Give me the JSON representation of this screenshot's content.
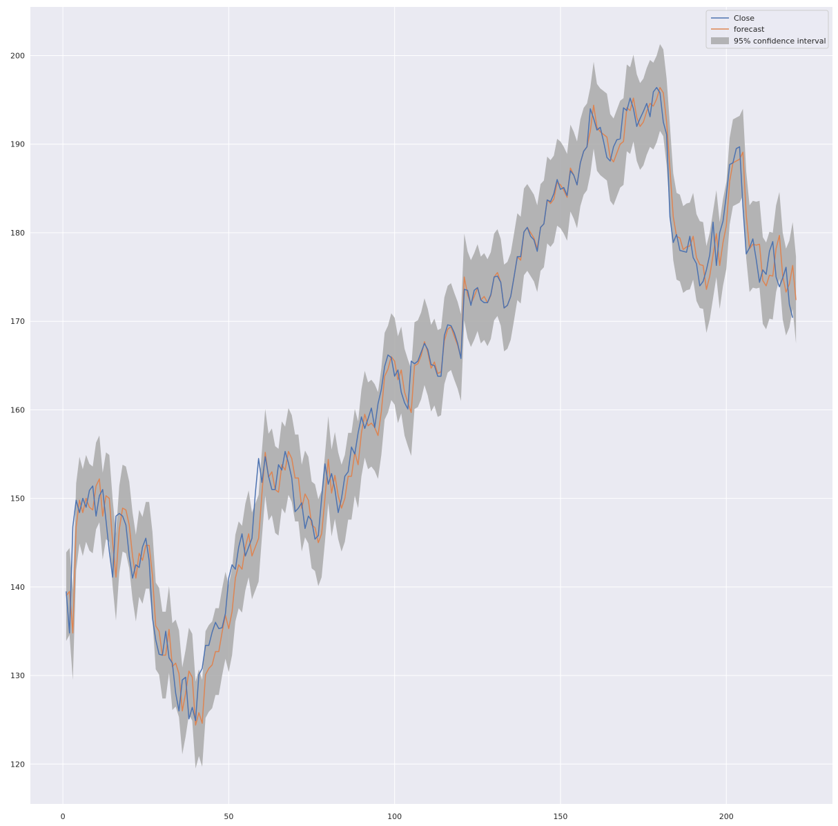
{
  "chart_data": {
    "type": "line",
    "title": "",
    "xlabel": "",
    "ylabel": "",
    "xlim": [
      -9.8,
      232
    ],
    "ylim": [
      115.5,
      205.5
    ],
    "x_ticks": [
      0,
      50,
      100,
      150,
      200
    ],
    "y_ticks": [
      120,
      130,
      140,
      150,
      160,
      170,
      180,
      190,
      200
    ],
    "grid": true,
    "legend_position": "top-right",
    "legend": {
      "close": "Close",
      "forecast": "forecast",
      "ci": "95% confidence interval"
    },
    "colors": {
      "close": "#4c72b0",
      "forecast": "#dd8452",
      "ci": "#a9a9a9",
      "background": "#eaeaf2",
      "grid": "#ffffff"
    },
    "x_start": 1,
    "series": [
      {
        "name": "Close",
        "values": [
          139.5,
          134.8,
          146.8,
          149.8,
          148.4,
          150.0,
          149.0,
          150.9,
          151.4,
          148.0,
          150.3,
          151.0,
          147.5,
          144.0,
          141.1,
          148.0,
          148.3,
          148.0,
          147.0,
          143.5,
          141.0,
          142.5,
          142.2,
          144.5,
          145.5,
          143.0,
          136.5,
          134.0,
          132.4,
          132.3,
          135.0,
          132.0,
          131.4,
          128.0,
          126.0,
          129.5,
          129.8,
          125.1,
          126.4,
          124.9,
          130.1,
          130.8,
          133.4,
          133.4,
          134.9,
          136.0,
          135.3,
          135.4,
          137.0,
          141.0,
          142.5,
          142.0,
          144.5,
          146.0,
          143.5,
          144.5,
          145.5,
          150.5,
          154.5,
          151.8,
          154.7,
          152.5,
          151.0,
          151.0,
          153.8,
          153.2,
          155.3,
          154.0,
          152.3,
          148.5,
          148.9,
          149.5,
          146.6,
          148.0,
          147.5,
          145.4,
          145.8,
          150.0,
          153.9,
          151.6,
          152.8,
          151.0,
          148.4,
          150.0,
          152.5,
          153.0,
          155.8,
          155.0,
          157.4,
          159.2,
          157.9,
          159.0,
          160.2,
          158.0,
          160.7,
          162.3,
          164.9,
          166.2,
          165.9,
          163.8,
          164.5,
          162.0,
          160.8,
          160.1,
          165.5,
          165.2,
          165.5,
          166.5,
          167.5,
          166.8,
          165.1,
          165.0,
          163.8,
          163.8,
          168.4,
          169.6,
          169.5,
          168.7,
          167.5,
          165.8,
          173.6,
          173.5,
          171.8,
          173.5,
          173.8,
          172.4,
          172.1,
          172.1,
          173.0,
          175.0,
          175.1,
          174.4,
          171.5,
          171.8,
          172.8,
          175.0,
          177.3,
          177.3,
          180.1,
          180.6,
          179.6,
          179.2,
          177.9,
          180.6,
          181.0,
          183.7,
          183.5,
          184.4,
          186.0,
          184.9,
          185.1,
          184.2,
          187.0,
          186.5,
          185.4,
          187.9,
          189.2,
          189.7,
          194.0,
          192.9,
          191.6,
          191.9,
          190.3,
          188.5,
          188.1,
          189.7,
          190.5,
          190.6,
          194.1,
          193.8,
          195.2,
          194.0,
          192.0,
          192.9,
          193.7,
          194.6,
          193.1,
          195.9,
          196.4,
          195.8,
          192.5,
          191.1,
          181.8,
          178.9,
          179.8,
          178.0,
          177.9,
          177.8,
          179.6,
          177.2,
          176.5,
          174.0,
          174.5,
          175.8,
          177.5,
          181.2,
          176.3,
          180.0,
          181.3,
          184.2,
          187.7,
          187.9,
          189.5,
          189.7,
          183.0,
          177.6,
          178.3,
          179.3,
          177.0,
          174.4,
          175.8,
          175.3,
          177.9,
          179.0,
          175.0,
          173.9,
          174.9,
          176.1,
          171.9,
          170.4
        ]
      },
      {
        "name": "forecast",
        "values": [
          139.0,
          139.5,
          134.8,
          146.8,
          149.8,
          148.4,
          150.0,
          149.0,
          148.7,
          151.4,
          152.2,
          148.0,
          150.3,
          150.0,
          145.0,
          141.1,
          146.5,
          148.9,
          148.7,
          147.0,
          143.5,
          141.0,
          143.8,
          143.0,
          144.7,
          144.7,
          141.3,
          135.6,
          135.0,
          132.3,
          132.3,
          135.2,
          131.0,
          131.4,
          130.2,
          126.0,
          128.0,
          130.5,
          129.8,
          124.4,
          125.8,
          124.6,
          130.1,
          130.8,
          131.2,
          132.7,
          132.7,
          134.9,
          136.8,
          135.3,
          137.2,
          141.0,
          142.5,
          142.0,
          144.5,
          146.0,
          143.5,
          144.5,
          145.5,
          150.5,
          155.2,
          152.4,
          153.0,
          151.0,
          150.7,
          153.8,
          153.2,
          155.3,
          154.5,
          152.3,
          152.3,
          148.9,
          150.5,
          149.8,
          147.0,
          146.7,
          145.0,
          146.0,
          150.0,
          154.4,
          150.6,
          152.6,
          150.3,
          148.9,
          150.0,
          152.5,
          152.5,
          155.2,
          153.8,
          157.4,
          159.5,
          158.2,
          158.5,
          158.0,
          157.1,
          159.8,
          163.8,
          164.6,
          166.0,
          165.5,
          163.4,
          164.5,
          162.0,
          160.8,
          159.7,
          165.0,
          165.2,
          166.1,
          167.7,
          166.5,
          164.7,
          165.4,
          164.1,
          164.3,
          167.8,
          169.1,
          169.4,
          168.3,
          167.3,
          165.9,
          175.0,
          173.0,
          172.0,
          172.8,
          173.8,
          172.4,
          172.8,
          172.1,
          172.9,
          175.0,
          175.5,
          174.4,
          171.5,
          171.8,
          172.8,
          175.0,
          177.3,
          176.9,
          180.1,
          180.6,
          180.0,
          179.4,
          178.2,
          180.6,
          181.0,
          183.7,
          183.3,
          183.8,
          185.7,
          185.4,
          184.8,
          184.0,
          187.3,
          186.5,
          185.4,
          187.9,
          189.2,
          189.7,
          191.5,
          194.4,
          191.9,
          191.4,
          191.1,
          190.8,
          188.5,
          188.0,
          189.0,
          190.0,
          190.3,
          194.1,
          193.8,
          195.2,
          193.0,
          192.0,
          192.5,
          193.7,
          194.6,
          194.3,
          195.1,
          196.4,
          195.8,
          192.5,
          187.2,
          181.8,
          179.6,
          179.4,
          178.1,
          178.4,
          178.5,
          179.6,
          177.2,
          176.4,
          176.3,
          173.6,
          175.1,
          177.5,
          179.9,
          176.3,
          178.9,
          180.8,
          185.8,
          187.9,
          188.1,
          188.3,
          189.1,
          182.0,
          178.2,
          178.7,
          178.6,
          178.7,
          174.6,
          174.0,
          175.2,
          175.1,
          178.2,
          179.7,
          175.1,
          173.3,
          174.2,
          176.3,
          172.4
        ]
      },
      {
        "name": "95% confidence interval",
        "lower": [
          133.9,
          134.6,
          129.5,
          141.9,
          144.9,
          143.5,
          145.1,
          144.1,
          143.8,
          146.5,
          147.3,
          143.1,
          145.4,
          145.1,
          140.1,
          136.2,
          141.6,
          144.0,
          143.8,
          142.1,
          138.6,
          136.1,
          138.9,
          138.1,
          139.8,
          139.8,
          136.4,
          130.7,
          130.1,
          127.4,
          127.4,
          130.3,
          126.1,
          126.5,
          125.3,
          121.1,
          123.1,
          125.6,
          124.9,
          119.5,
          120.9,
          119.7,
          125.2,
          125.9,
          126.3,
          127.8,
          127.8,
          130.0,
          131.9,
          130.4,
          132.3,
          136.1,
          137.6,
          137.1,
          139.6,
          141.1,
          138.6,
          139.6,
          140.6,
          145.6,
          150.3,
          147.5,
          148.1,
          146.1,
          145.8,
          148.9,
          148.3,
          150.4,
          149.6,
          147.4,
          147.4,
          144.0,
          145.6,
          144.9,
          142.1,
          141.8,
          140.1,
          141.1,
          145.1,
          149.5,
          145.7,
          147.7,
          145.4,
          144.0,
          145.1,
          147.6,
          147.6,
          150.3,
          148.9,
          152.5,
          154.6,
          153.3,
          153.6,
          153.1,
          152.2,
          154.9,
          158.9,
          159.7,
          161.1,
          160.6,
          158.5,
          159.6,
          157.1,
          155.9,
          154.8,
          160.1,
          160.3,
          161.2,
          162.8,
          161.6,
          159.8,
          160.5,
          159.2,
          159.4,
          162.9,
          164.2,
          164.5,
          163.4,
          162.4,
          161.0,
          170.1,
          168.1,
          167.1,
          167.9,
          168.9,
          167.5,
          167.9,
          167.2,
          168.0,
          170.1,
          170.6,
          169.5,
          166.6,
          166.9,
          167.9,
          170.1,
          172.4,
          172.0,
          175.2,
          175.7,
          175.1,
          174.5,
          173.3,
          175.7,
          176.1,
          178.8,
          178.4,
          178.9,
          180.8,
          180.5,
          179.9,
          179.1,
          182.4,
          181.6,
          180.5,
          183.0,
          184.3,
          184.8,
          186.6,
          189.5,
          187.0,
          186.5,
          186.2,
          185.9,
          183.6,
          183.1,
          184.1,
          185.1,
          185.4,
          189.2,
          188.9,
          190.3,
          188.1,
          187.1,
          187.6,
          188.8,
          189.7,
          189.4,
          190.2,
          191.5,
          190.9,
          187.6,
          182.3,
          176.9,
          174.7,
          174.5,
          173.2,
          173.5,
          173.6,
          174.7,
          172.3,
          171.5,
          171.4,
          168.7,
          170.2,
          172.6,
          175.0,
          171.4,
          174.0,
          175.9,
          180.9,
          183.0,
          183.2,
          183.4,
          184.2,
          177.1,
          173.3,
          173.8,
          173.7,
          173.8,
          169.7,
          169.1,
          170.3,
          170.2,
          173.3,
          174.8,
          170.2,
          168.4,
          169.3,
          171.4,
          167.5
        ],
        "upper": [
          143.9,
          144.4,
          139.7,
          151.7,
          154.7,
          153.3,
          154.9,
          153.9,
          153.6,
          156.3,
          157.1,
          152.9,
          155.2,
          154.9,
          149.9,
          146.0,
          151.4,
          153.8,
          153.6,
          151.9,
          148.4,
          145.9,
          148.7,
          147.9,
          149.6,
          149.6,
          146.2,
          140.5,
          139.9,
          137.2,
          137.2,
          140.1,
          135.9,
          136.3,
          135.1,
          130.9,
          132.9,
          135.4,
          134.7,
          129.3,
          130.7,
          129.5,
          135.0,
          135.7,
          136.1,
          137.6,
          137.6,
          139.8,
          141.7,
          140.2,
          142.1,
          145.9,
          147.4,
          146.9,
          149.4,
          150.9,
          148.4,
          149.4,
          150.4,
          155.4,
          160.1,
          157.3,
          157.9,
          155.9,
          155.6,
          158.7,
          158.1,
          160.2,
          159.4,
          157.2,
          157.2,
          153.8,
          155.4,
          154.7,
          151.9,
          151.6,
          149.9,
          150.9,
          154.9,
          159.3,
          155.5,
          157.5,
          155.2,
          153.8,
          154.9,
          157.4,
          157.4,
          160.1,
          158.7,
          162.3,
          164.4,
          163.1,
          163.4,
          162.9,
          162.0,
          164.7,
          168.7,
          169.5,
          170.9,
          170.4,
          168.3,
          169.4,
          166.9,
          165.7,
          164.6,
          169.9,
          170.1,
          171.0,
          172.6,
          171.4,
          169.6,
          170.3,
          169.0,
          169.2,
          172.7,
          174.0,
          174.3,
          173.2,
          172.2,
          170.8,
          179.9,
          177.9,
          176.9,
          177.7,
          178.7,
          177.3,
          177.7,
          177.0,
          177.8,
          179.9,
          180.4,
          179.3,
          176.4,
          176.7,
          177.7,
          179.9,
          182.2,
          181.8,
          185.0,
          185.5,
          184.9,
          184.3,
          183.1,
          185.5,
          185.9,
          188.6,
          188.2,
          188.7,
          190.6,
          190.3,
          189.7,
          188.9,
          192.2,
          191.4,
          190.3,
          192.8,
          194.1,
          194.6,
          196.4,
          199.3,
          196.8,
          196.3,
          196.0,
          195.7,
          193.4,
          192.9,
          193.9,
          194.9,
          195.2,
          199.0,
          198.7,
          200.1,
          197.9,
          196.9,
          197.4,
          198.6,
          199.5,
          199.2,
          200.0,
          201.3,
          200.7,
          197.4,
          192.1,
          186.7,
          184.5,
          184.3,
          183.0,
          183.3,
          183.4,
          184.5,
          182.1,
          181.3,
          181.2,
          178.5,
          180.0,
          182.4,
          184.8,
          181.2,
          183.8,
          185.7,
          190.7,
          192.8,
          193.0,
          193.2,
          194.0,
          186.9,
          183.1,
          183.6,
          183.5,
          183.6,
          179.5,
          178.9,
          180.1,
          180.0,
          183.1,
          184.6,
          180.0,
          178.2,
          179.1,
          181.2,
          177.3
        ]
      }
    ]
  }
}
